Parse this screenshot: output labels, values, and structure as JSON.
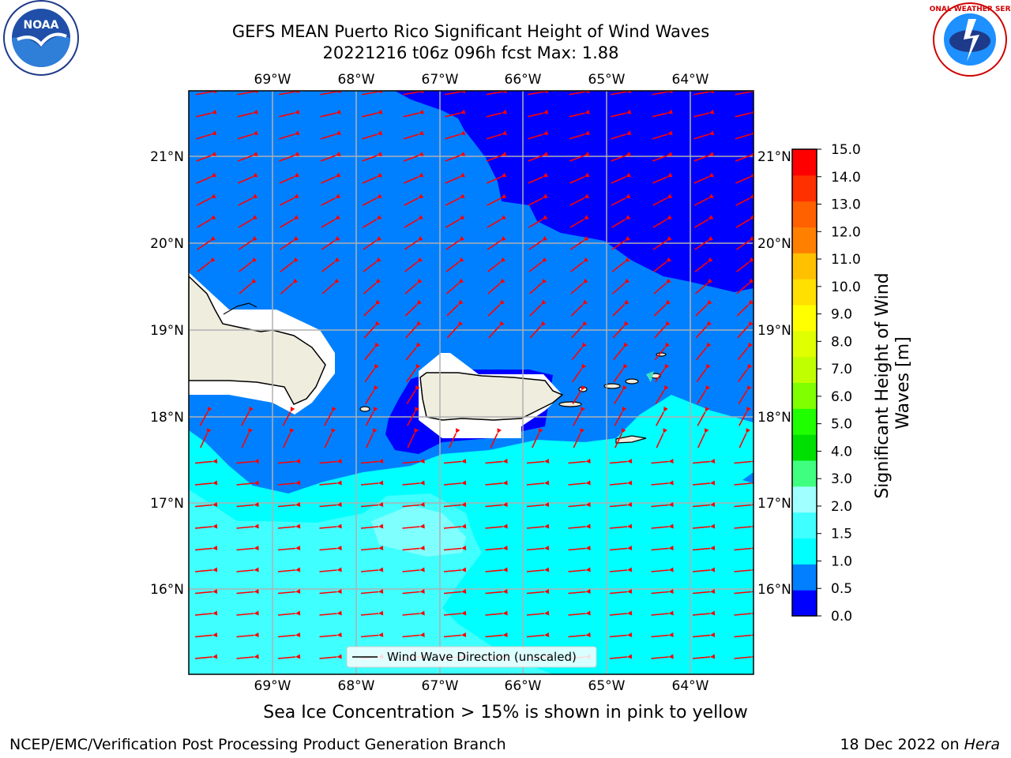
{
  "header": {
    "title_line1": "GEFS MEAN Puerto Rico Significant Height of Wind Waves",
    "title_line2": "20221216 t06z 096h fcst   Max: 1.88"
  },
  "map": {
    "lon_labels": [
      "69°W",
      "68°W",
      "67°W",
      "66°W",
      "65°W",
      "64°W"
    ],
    "lat_labels": [
      "21°N",
      "20°N",
      "19°N",
      "18°N",
      "17°N",
      "16°N"
    ],
    "legend_label": "Wind Wave Direction (unscaled)",
    "arrow_color": "#ff0000",
    "land_color": "#efedde",
    "fill_colors": {
      "0.0-0.5": "#0000ff",
      "0.5-1.0": "#0080ff",
      "1.0-1.5": "#00ffff",
      "1.5-2.0": "#40ffff"
    }
  },
  "colorbar": {
    "title": "Significant Height of Wind Waves [m]",
    "ticks": [
      "15.0",
      "14.0",
      "13.0",
      "12.0",
      "11.0",
      "10.0",
      "9.0",
      "8.0",
      "7.0",
      "6.0",
      "5.0",
      "4.0",
      "3.0",
      "2.0",
      "1.5",
      "1.0",
      "0.5",
      "0.0"
    ],
    "colors_bottom_to_top": [
      "#0000ff",
      "#0080ff",
      "#00ffff",
      "#40ffff",
      "#a0ffff",
      "#40ff80",
      "#00e000",
      "#20ff00",
      "#80ff00",
      "#c0ff00",
      "#e0ff00",
      "#ffff00",
      "#ffe000",
      "#ffc000",
      "#ff8000",
      "#ff6000",
      "#ff3000",
      "#ff0000"
    ]
  },
  "captions": {
    "sea_ice": "Sea Ice Concentration > 15% is shown in pink to yellow",
    "footer_left": "NCEP/EMC/Verification Post Processing Product Generation Branch",
    "footer_right_prefix": "18 Dec 2022 on ",
    "footer_right_machine": "Hera"
  },
  "logos": {
    "noaa_text": "NOAA",
    "nws_text": "NATIONAL WEATHER SERVICE"
  }
}
